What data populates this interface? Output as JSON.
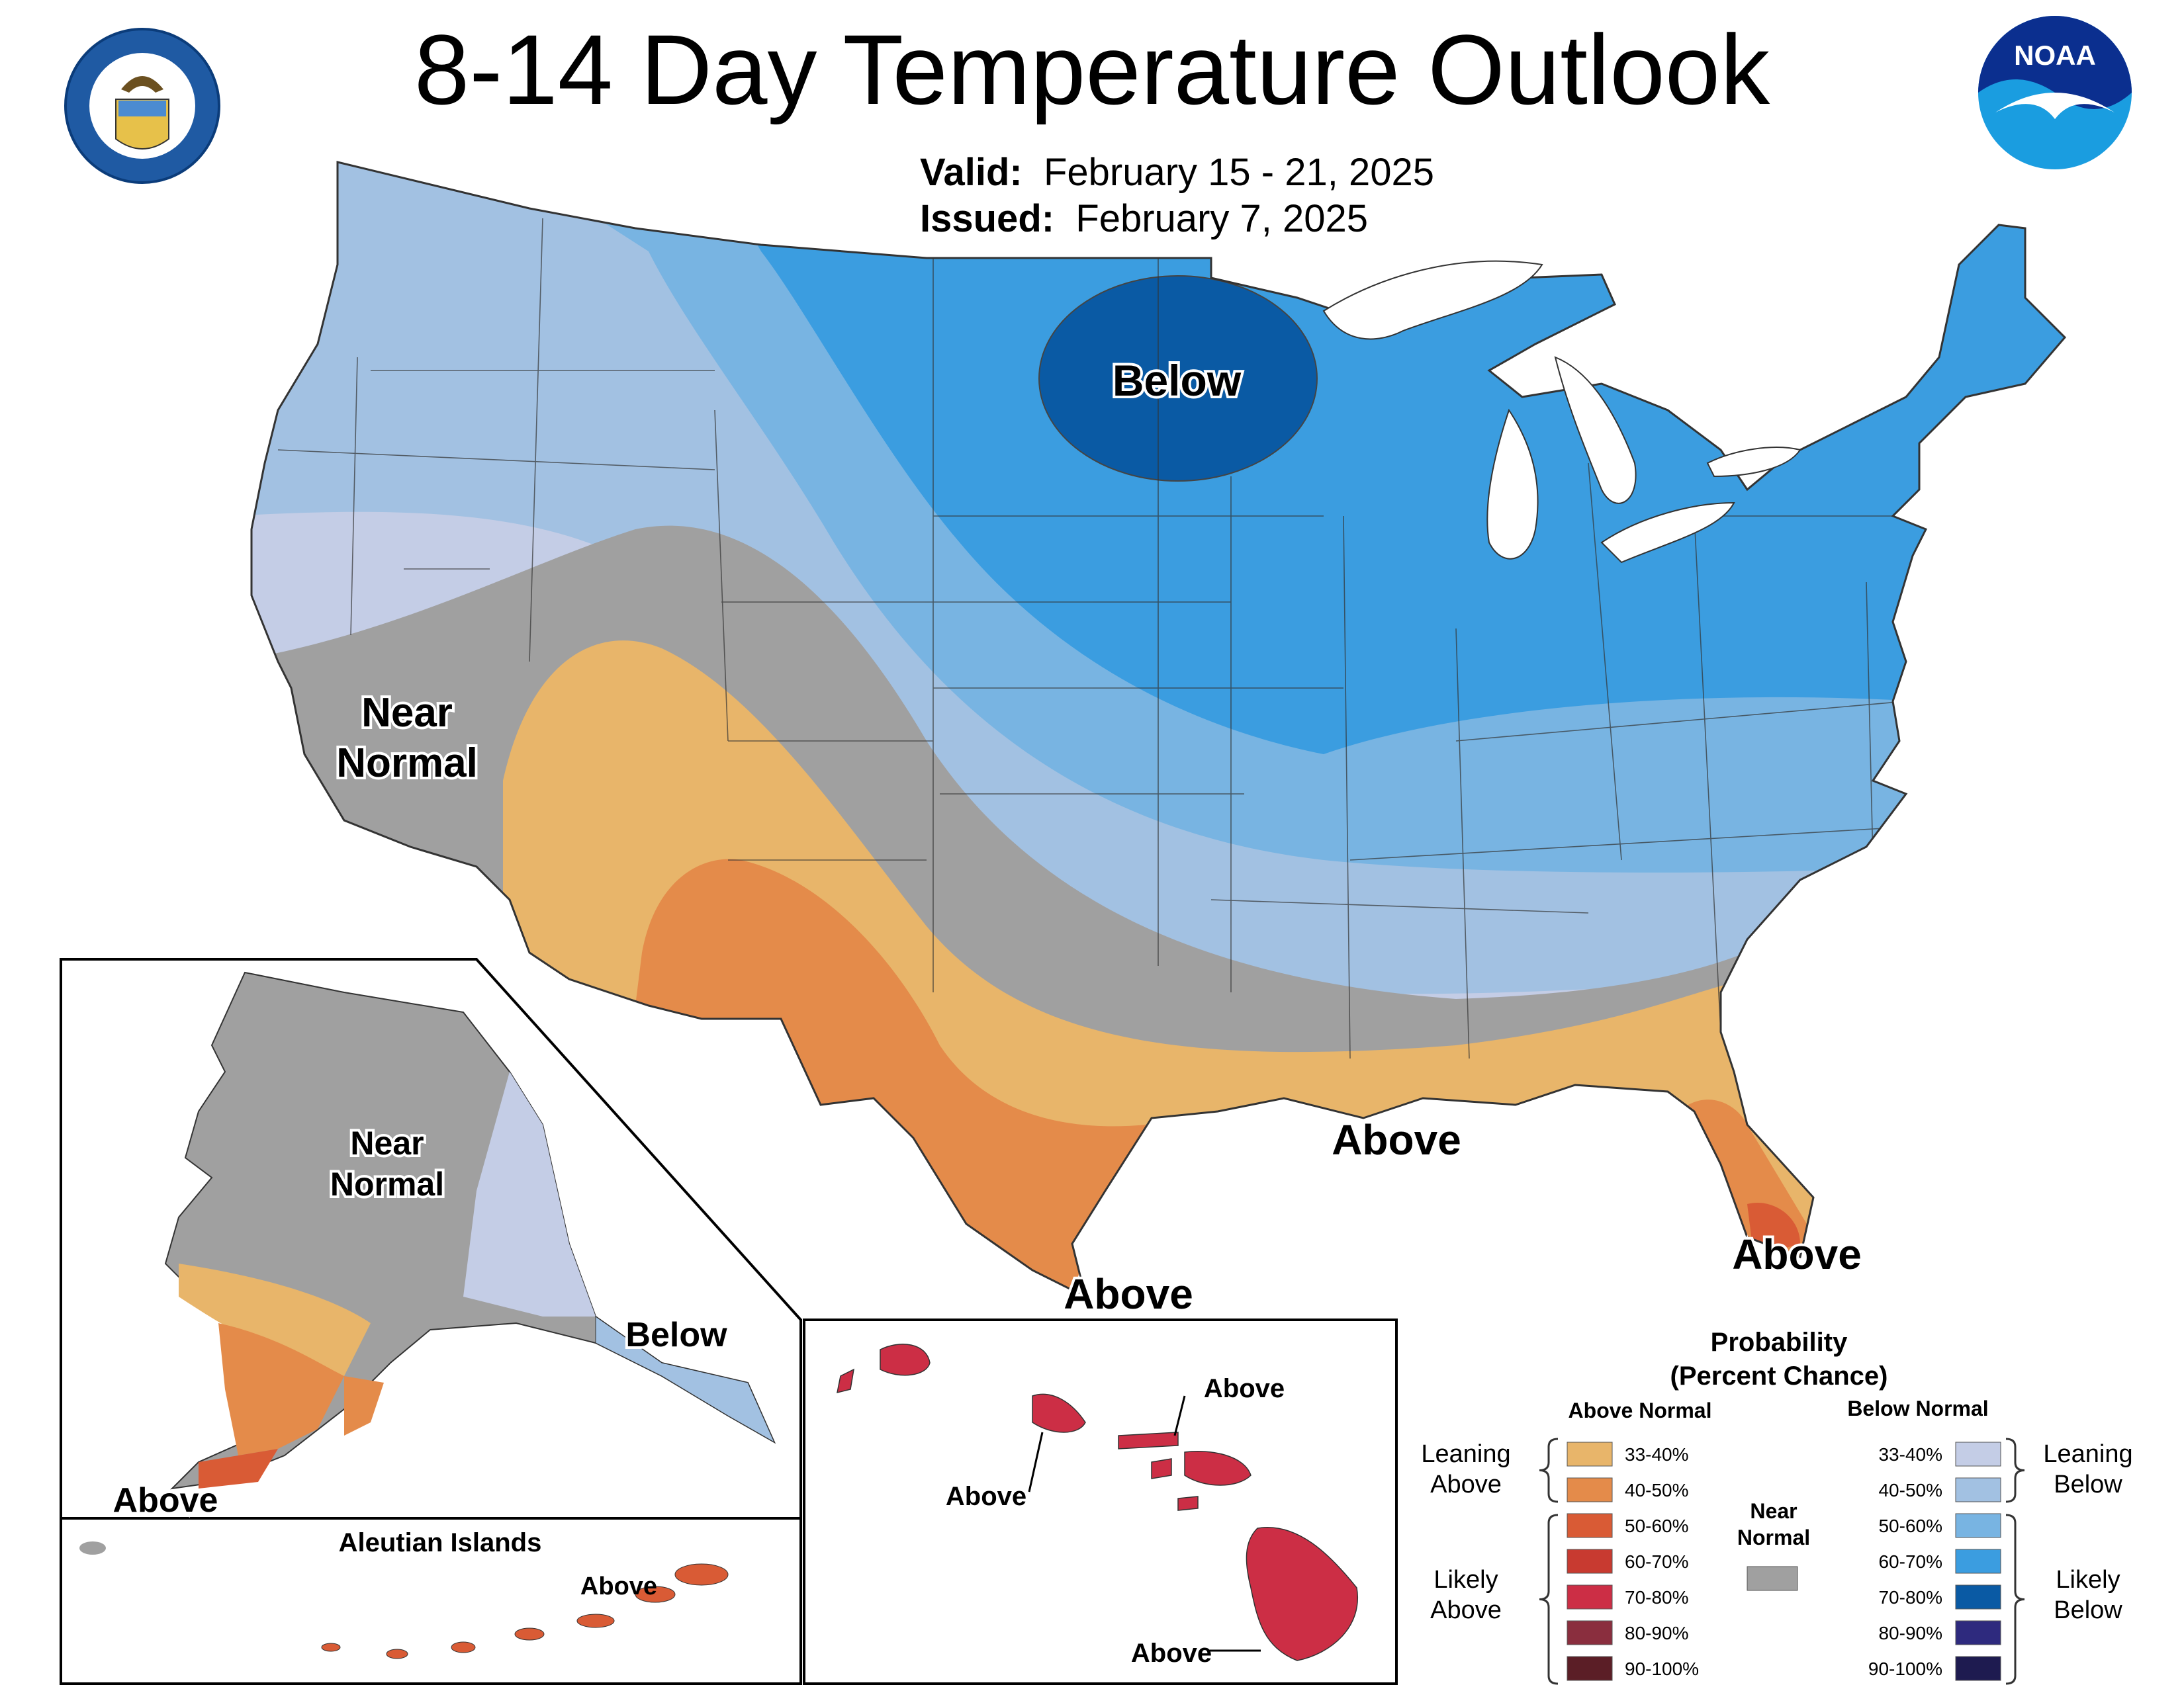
{
  "title": "8-14 Day Temperature Outlook",
  "valid_label": "Valid:",
  "valid_value": "February 15 - 21, 2025",
  "issued_label": "Issued:",
  "issued_value": "February 7, 2025",
  "logos": {
    "left": "DEPARTMENT OF COMMERCE · UNITED STATES OF AMERICA",
    "right": "NOAA"
  },
  "map_labels": {
    "below_north": "Below",
    "near_normal_west": "Near Normal",
    "above_gulf": "Above",
    "above_texas": "Above",
    "above_florida": "Above"
  },
  "alaska": {
    "near_normal": "Near Normal",
    "below": "Below",
    "above": "Above"
  },
  "aleutian": {
    "title": "Aleutian Islands",
    "above": "Above"
  },
  "hawaii": {
    "above_top": "Above",
    "above_left": "Above",
    "above_bottom": "Above"
  },
  "legend": {
    "title_line1": "Probability",
    "title_line2": "(Percent Chance)",
    "above_header": "Above Normal",
    "below_header": "Below Normal",
    "near_normal": "Near Normal",
    "leaning_above": "Leaning Above",
    "likely_above": "Likely Above",
    "leaning_below": "Leaning Below",
    "likely_below": "Likely Below",
    "above_bins": [
      {
        "label": "33-40%",
        "color": "#e8b56a"
      },
      {
        "label": "40-50%",
        "color": "#e48b4a"
      },
      {
        "label": "50-60%",
        "color": "#d95b35"
      },
      {
        "label": "60-70%",
        "color": "#c83a30"
      },
      {
        "label": "70-80%",
        "color": "#cc2e45"
      },
      {
        "label": "80-90%",
        "color": "#8a2e3e"
      },
      {
        "label": "90-100%",
        "color": "#5b1e26"
      }
    ],
    "below_bins": [
      {
        "label": "33-40%",
        "color": "#c4cde6"
      },
      {
        "label": "40-50%",
        "color": "#a2c1e2"
      },
      {
        "label": "50-60%",
        "color": "#78b4e2"
      },
      {
        "label": "60-70%",
        "color": "#3b9de0"
      },
      {
        "label": "70-80%",
        "color": "#0a5aa4"
      },
      {
        "label": "80-90%",
        "color": "#2e2a7e"
      },
      {
        "label": "90-100%",
        "color": "#1e1b50"
      }
    ],
    "near_color": "#a0a0a0"
  }
}
